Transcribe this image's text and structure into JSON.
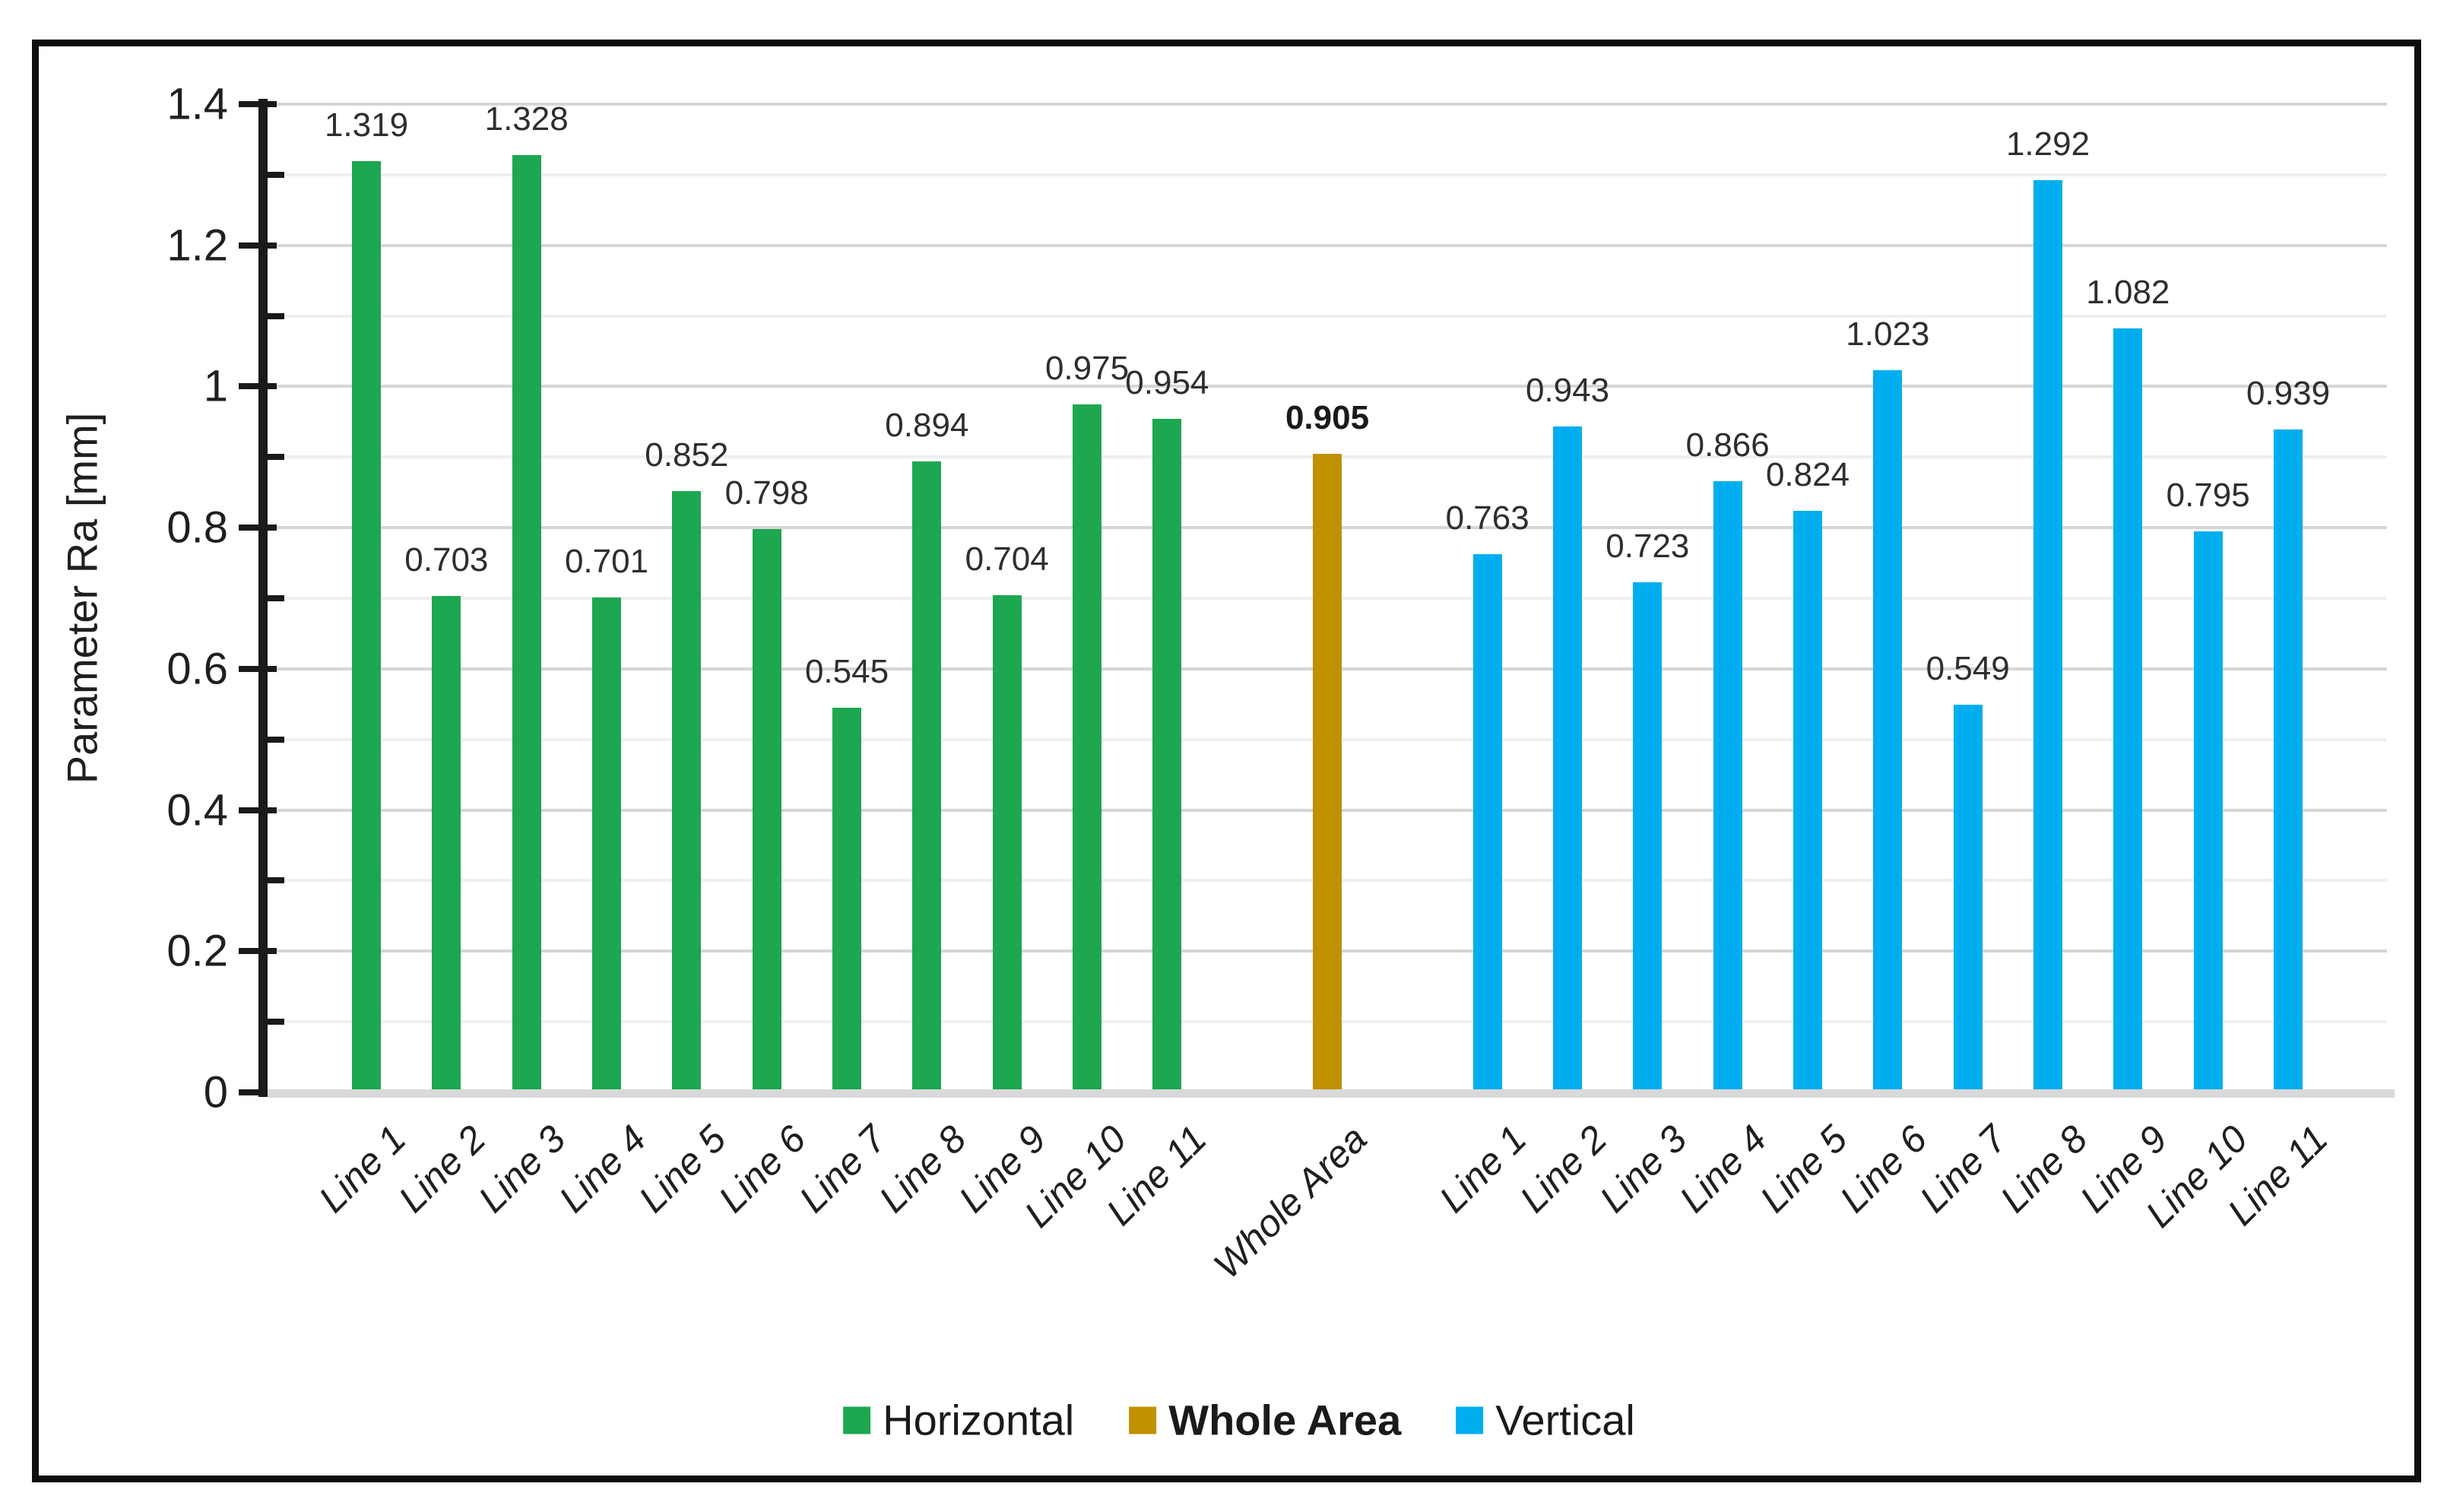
{
  "figure": {
    "background": "#ffffff",
    "border_color": "#0d0d0d"
  },
  "chart_data": {
    "type": "bar",
    "title": "",
    "xlabel": "",
    "ylabel": "Parameter Ra [mm]",
    "ylim": [
      0,
      1.4
    ],
    "ytick_major_step": 0.2,
    "ytick_minor_step": 0.1,
    "ytick_labels": [
      "0",
      "0.2",
      "0.4",
      "0.6",
      "0.8",
      "1",
      "1.2",
      "1.4"
    ],
    "grid": true,
    "value_label_decimals": 3,
    "legend_position": "bottom-center",
    "colors": {
      "grid_major": "#d6d6d6",
      "grid_minor": "#efefef",
      "axis_line": "#1a1a1a",
      "baseline": "#d9d9d9",
      "value_label": "#2e2e2e"
    },
    "series": [
      {
        "name": "Horizontal",
        "color": "#1ca750",
        "bold_value_labels": false,
        "start_slot": 0,
        "categories": [
          "Line 1",
          "Line 2",
          "Line 3",
          "Line 4",
          "Line 5",
          "Line 6",
          "Line 7",
          "Line 8",
          "Line 9",
          "Line 10",
          "Line 11"
        ],
        "values": [
          1.319,
          0.703,
          1.328,
          0.701,
          0.852,
          0.798,
          0.545,
          0.894,
          0.704,
          0.975,
          0.954
        ]
      },
      {
        "name": "Whole Area",
        "color": "#bf9000",
        "bold_value_labels": true,
        "start_slot": 12,
        "categories": [
          "Whole Area"
        ],
        "values": [
          0.905
        ]
      },
      {
        "name": "Vertical",
        "color": "#00aeef",
        "bold_value_labels": false,
        "start_slot": 14,
        "categories": [
          "Line 1",
          "Line 2",
          "Line 3",
          "Line 4",
          "Line 5",
          "Line 6",
          "Line 7",
          "Line 8",
          "Line 9",
          "Line 10",
          "Line 11"
        ],
        "values": [
          0.763,
          0.943,
          0.723,
          0.866,
          0.824,
          1.023,
          0.549,
          1.292,
          1.082,
          0.795,
          0.939
        ]
      }
    ],
    "total_slots": 25
  },
  "legend": {
    "items": [
      {
        "label": "Horizontal",
        "color": "#1ca750",
        "bold": false
      },
      {
        "label": "Whole Area",
        "color": "#bf9000",
        "bold": true
      },
      {
        "label": "Vertical",
        "color": "#00aeef",
        "bold": false
      }
    ]
  }
}
